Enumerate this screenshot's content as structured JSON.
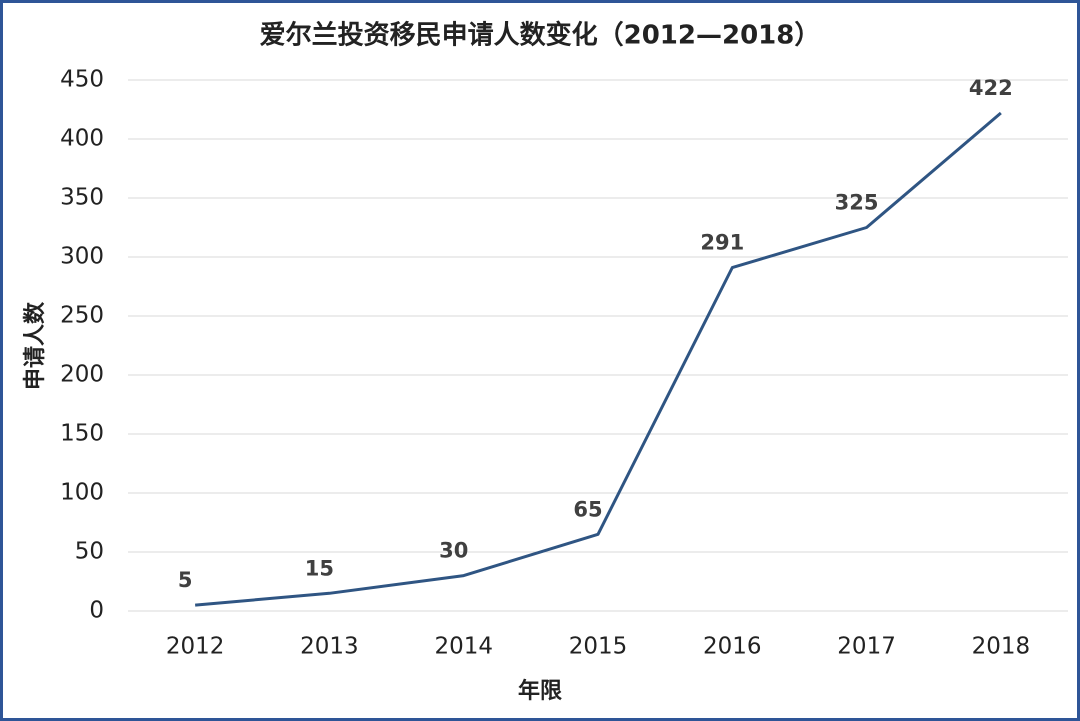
{
  "chart_data": {
    "type": "line",
    "title": "爱尔兰投资移民申请人数变化（2012—2018）",
    "x_label": "年限",
    "y_label": "申请人数",
    "categories": [
      "2012",
      "2013",
      "2014",
      "2015",
      "2016",
      "2017",
      "2018"
    ],
    "values": [
      5,
      15,
      30,
      65,
      291,
      325,
      422
    ],
    "color": "#2f5583",
    "ylim": [
      0,
      450
    ],
    "yticks": [
      0,
      50,
      100,
      150,
      200,
      250,
      300,
      350,
      400,
      450
    ],
    "grid": true
  }
}
